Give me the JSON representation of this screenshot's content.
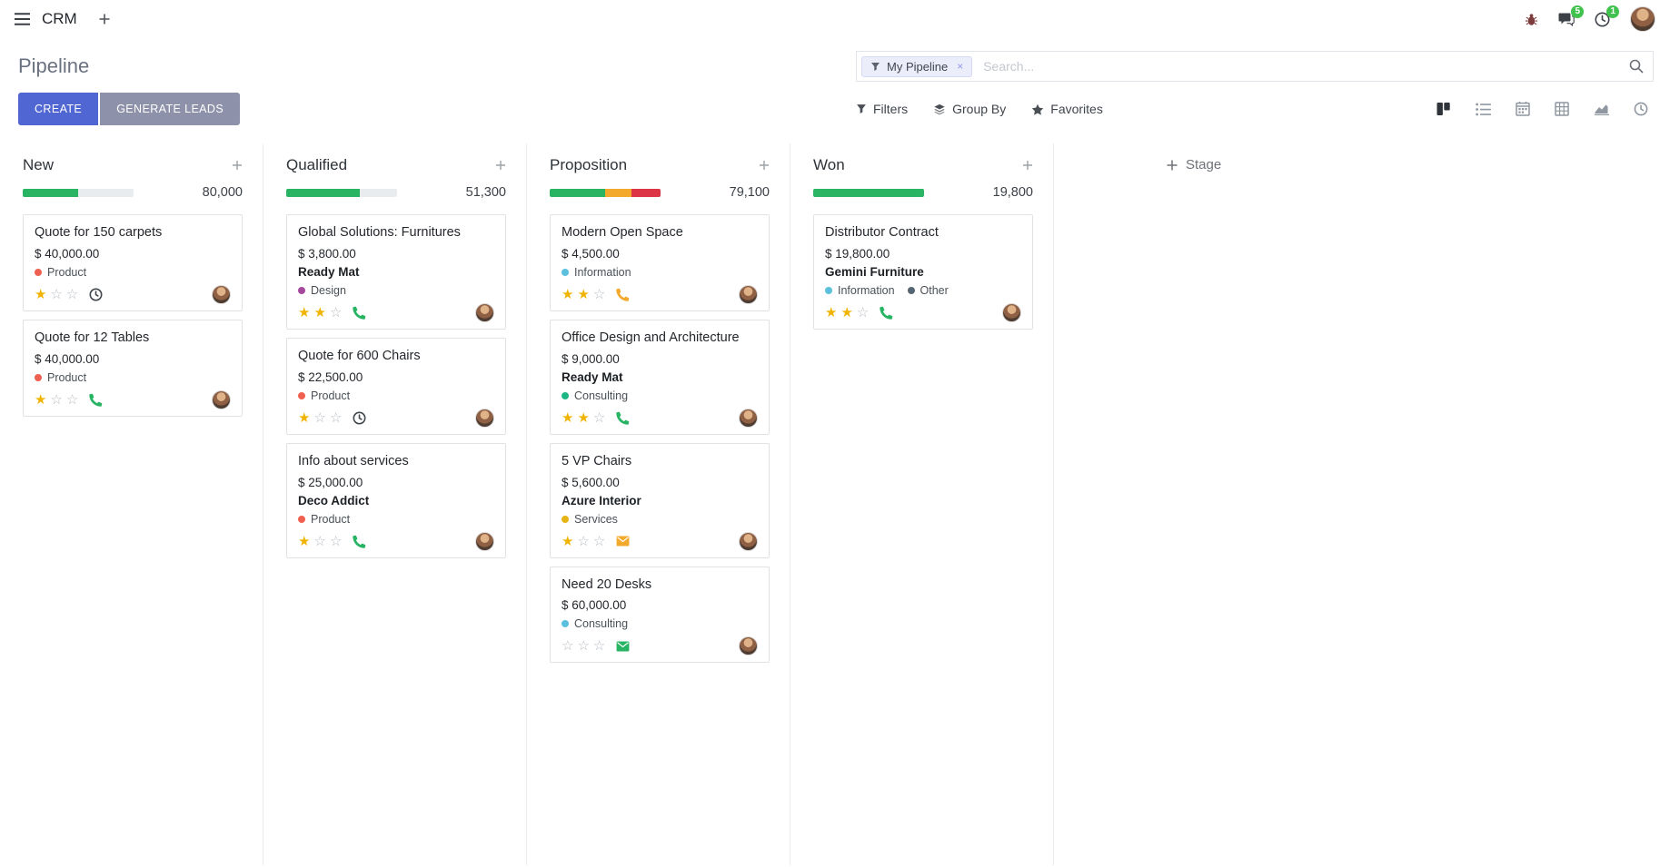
{
  "colors": {
    "accent": "#5066d2",
    "muted_button": "#8d92aa",
    "success": "#28b463",
    "warning": "#f3a92c",
    "danger": "#dc3545",
    "badge": "#41c14e"
  },
  "icons": {
    "star_filled": "★",
    "star_empty": "☆"
  },
  "navbar": {
    "app_name": "CRM",
    "messages_badge": "5",
    "activities_badge": "1"
  },
  "control_panel": {
    "title": "Pipeline",
    "create_label": "CREATE",
    "generate_leads_label": "GENERATE LEADS",
    "filters_label": "Filters",
    "group_by_label": "Group By",
    "favorites_label": "Favorites",
    "search": {
      "facet_label": "My Pipeline",
      "facet_remove": "×",
      "placeholder": "Search..."
    }
  },
  "board": {
    "add_stage_label": "Stage",
    "columns": [
      {
        "name": "New",
        "total": "80,000",
        "progress": [
          {
            "color": "#28b463",
            "pct": 50
          }
        ],
        "cards": [
          {
            "title": "Quote for 150 carpets",
            "amount": "$ 40,000.00",
            "partner": null,
            "tags": [
              {
                "label": "Product",
                "color": "#f06050"
              }
            ],
            "stars": 1,
            "activity": {
              "icon": "clock",
              "color": "#41464c"
            }
          },
          {
            "title": "Quote for 12 Tables",
            "amount": "$ 40,000.00",
            "partner": null,
            "tags": [
              {
                "label": "Product",
                "color": "#f06050"
              }
            ],
            "stars": 1,
            "activity": {
              "icon": "phone",
              "color": "#28b463"
            }
          }
        ]
      },
      {
        "name": "Qualified",
        "total": "51,300",
        "progress": [
          {
            "color": "#28b463",
            "pct": 66
          }
        ],
        "cards": [
          {
            "title": "Global Solutions: Furnitures",
            "amount": "$ 3,800.00",
            "partner": "Ready Mat",
            "tags": [
              {
                "label": "Design",
                "color": "#a5499d"
              }
            ],
            "stars": 2,
            "activity": {
              "icon": "phone",
              "color": "#28b463"
            }
          },
          {
            "title": "Quote for 600 Chairs",
            "amount": "$ 22,500.00",
            "partner": null,
            "tags": [
              {
                "label": "Product",
                "color": "#f06050"
              }
            ],
            "stars": 1,
            "activity": {
              "icon": "clock",
              "color": "#41464c"
            }
          },
          {
            "title": "Info about services",
            "amount": "$ 25,000.00",
            "partner": "Deco Addict",
            "tags": [
              {
                "label": "Product",
                "color": "#f06050"
              }
            ],
            "stars": 1,
            "activity": {
              "icon": "phone",
              "color": "#28b463"
            }
          }
        ]
      },
      {
        "name": "Proposition",
        "total": "79,100",
        "progress": [
          {
            "color": "#28b463",
            "pct": 50
          },
          {
            "color": "#f3a92c",
            "pct": 24
          },
          {
            "color": "#dc3545",
            "pct": 26
          }
        ],
        "cards": [
          {
            "title": "Modern Open Space",
            "amount": "$ 4,500.00",
            "partner": null,
            "tags": [
              {
                "label": "Information",
                "color": "#5bc0de"
              }
            ],
            "stars": 2,
            "activity": {
              "icon": "phone",
              "color": "#f3a92c"
            }
          },
          {
            "title": "Office Design and Architecture",
            "amount": "$ 9,000.00",
            "partner": "Ready Mat",
            "tags": [
              {
                "label": "Consulting",
                "color": "#1db584"
              }
            ],
            "stars": 2,
            "activity": {
              "icon": "phone",
              "color": "#28b463"
            }
          },
          {
            "title": "5 VP Chairs",
            "amount": "$ 5,600.00",
            "partner": "Azure Interior",
            "tags": [
              {
                "label": "Services",
                "color": "#e7b416"
              }
            ],
            "stars": 1,
            "activity": {
              "icon": "envelope",
              "color": "#f3a92c"
            }
          },
          {
            "title": "Need 20 Desks",
            "amount": "$ 60,000.00",
            "partner": null,
            "tags": [
              {
                "label": "Consulting",
                "color": "#5bc0de"
              }
            ],
            "stars": 0,
            "activity": {
              "icon": "envelope",
              "color": "#28b463"
            }
          }
        ]
      },
      {
        "name": "Won",
        "total": "19,800",
        "progress": [
          {
            "color": "#28b463",
            "pct": 100
          }
        ],
        "cards": [
          {
            "title": "Distributor Contract",
            "amount": "$ 19,800.00",
            "partner": "Gemini Furniture",
            "tags": [
              {
                "label": "Information",
                "color": "#5bc0de"
              },
              {
                "label": "Other",
                "color": "#556672"
              }
            ],
            "stars": 2,
            "activity": {
              "icon": "phone",
              "color": "#28b463"
            }
          }
        ]
      }
    ]
  }
}
